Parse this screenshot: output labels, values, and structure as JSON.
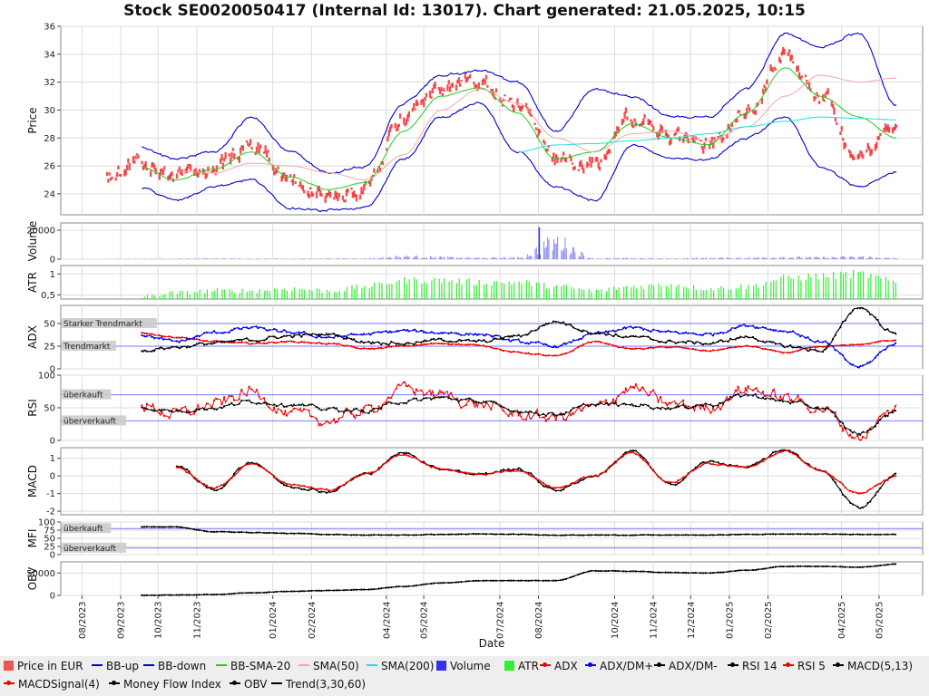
{
  "title": "Stock SE0020050417 (Internal Id: 13017). Chart generated: 21.05.2025, 10:15",
  "colors": {
    "price": "#ee3333",
    "bb_up": "#0000cc",
    "bb_down": "#0000cc",
    "bb_sma": "#22cc22",
    "sma50": "#f0a8a8",
    "sma200": "#22dddd",
    "volume": "#3333ee",
    "atr": "#33ee33",
    "adx": "#ee0000",
    "dmplus": "#0000ee",
    "dmminus": "#000000",
    "rsi14": "#000000",
    "rsi5": "#ee0000",
    "macd": "#000000",
    "macdsignal": "#ee0000",
    "mfi": "#000000",
    "obv": "#000000",
    "trend": "#000000",
    "band_line": "#7777ff",
    "band_label_bg": "#cccccc"
  },
  "xaxis": {
    "label": "Date",
    "tick_labels": [
      "08/2023",
      "09/2023",
      "10/2023",
      "11/2023",
      "01/2024",
      "02/2024",
      "04/2024",
      "05/2024",
      "07/2024",
      "08/2024",
      "10/2024",
      "11/2024",
      "12/2024",
      "01/2025",
      "02/2025",
      "04/2025",
      "05/2025"
    ]
  },
  "panels": {
    "price": {
      "ylabel": "Price",
      "yticks": [
        "24",
        "26",
        "28",
        "30",
        "32",
        "34",
        "36"
      ]
    },
    "volume": {
      "ylabel": "Volume",
      "yticks": [
        "0",
        "20000"
      ]
    },
    "atr": {
      "ylabel": "ATR",
      "yticks": [
        "0,5",
        "1"
      ]
    },
    "adx": {
      "ylabel": "ADX",
      "yticks": [
        "0",
        "25",
        "50"
      ],
      "bands": [
        "Starker Trendmarkt",
        "Trendmarkt"
      ]
    },
    "rsi": {
      "ylabel": "RSI",
      "yticks": [
        "0",
        "50",
        "100"
      ],
      "bands": [
        "überkauft",
        "überverkauft"
      ]
    },
    "macd": {
      "ylabel": "MACD",
      "yticks": [
        "-2",
        "-1",
        "0",
        "1"
      ]
    },
    "mfi": {
      "ylabel": "MFI",
      "yticks": [
        "0",
        "25",
        "50",
        "75",
        "100"
      ],
      "bands": [
        "überkauft",
        "überverkauft"
      ]
    },
    "obv": {
      "ylabel": "OBV",
      "yticks": [
        "0",
        "50000"
      ]
    }
  },
  "legend": [
    {
      "label": "Price in EUR",
      "kind": "box",
      "color": "#ee5555"
    },
    {
      "label": "BB-up",
      "kind": "line",
      "color": "#0000cc"
    },
    {
      "label": "BB-down",
      "kind": "line",
      "color": "#0000cc"
    },
    {
      "label": "BB-SMA-20",
      "kind": "line",
      "color": "#22cc22"
    },
    {
      "label": "SMA(50)",
      "kind": "line",
      "color": "#f0a8a8"
    },
    {
      "label": "SMA(200)",
      "kind": "line",
      "color": "#22dddd"
    },
    {
      "label": "Volume",
      "kind": "box",
      "color": "#3333ee"
    },
    {
      "label": "ATR",
      "kind": "box",
      "color": "#33ee33"
    },
    {
      "label": "ADX",
      "kind": "dot",
      "color": "#ee0000"
    },
    {
      "label": "ADX/DM+",
      "kind": "dot",
      "color": "#0000ee"
    },
    {
      "label": "ADX/DM-",
      "kind": "dot",
      "color": "#000000"
    },
    {
      "label": "RSI 14",
      "kind": "dot",
      "color": "#000000"
    },
    {
      "label": "RSI 5",
      "kind": "dot",
      "color": "#ee0000"
    },
    {
      "label": "MACD(5,13)",
      "kind": "dot",
      "color": "#000000"
    },
    {
      "label": "MACDSignal(4)",
      "kind": "dot",
      "color": "#ee0000"
    },
    {
      "label": "Money Flow Index",
      "kind": "dot",
      "color": "#000000"
    },
    {
      "label": "OBV",
      "kind": "dot",
      "color": "#000000"
    },
    {
      "label": "Trend(3,30,60)",
      "kind": "line",
      "color": "#000000"
    }
  ],
  "chart_data": {
    "type": "line",
    "title": "Stock SE0020050417 (Internal Id: 13017). Chart generated: 21.05.2025, 10:15",
    "xlabel": "Date",
    "x": [
      "2023-08-21",
      "2023-09-15",
      "2023-10-15",
      "2023-11-15",
      "2023-12-15",
      "2024-01-15",
      "2024-02-15",
      "2024-03-15",
      "2024-04-15",
      "2024-05-15",
      "2024-06-15",
      "2024-07-15",
      "2024-08-15",
      "2024-09-15",
      "2024-10-15",
      "2024-11-15",
      "2024-12-15",
      "2025-01-15",
      "2025-02-15",
      "2025-03-15",
      "2025-04-15",
      "2025-05-15"
    ],
    "series": [
      {
        "name": "Price in EUR",
        "panel": "price",
        "ylim": [
          22.5,
          36
        ],
        "values": [
          25.0,
          26.5,
          25.0,
          25.8,
          27.5,
          25.0,
          23.8,
          24.5,
          29.5,
          31.5,
          32.0,
          30.5,
          26.5,
          26.0,
          29.5,
          28.0,
          27.5,
          30.0,
          34.0,
          31.0,
          26.5,
          28.5
        ]
      },
      {
        "name": "BB-up",
        "panel": "price",
        "values": [
          null,
          27.4,
          26.5,
          27.0,
          29.5,
          27.0,
          25.5,
          26.0,
          30.5,
          32.5,
          32.8,
          32.0,
          28.5,
          31.5,
          31.0,
          29.5,
          29.5,
          31.5,
          35.5,
          34.5,
          35.5,
          30.3
        ]
      },
      {
        "name": "BB-down",
        "panel": "price",
        "values": [
          null,
          24.5,
          23.5,
          24.5,
          25.0,
          23.0,
          22.8,
          23.0,
          26.5,
          29.5,
          30.5,
          27.0,
          24.5,
          23.5,
          27.5,
          26.5,
          26.5,
          28.0,
          29.5,
          26.0,
          24.5,
          25.6
        ]
      },
      {
        "name": "BB-SMA-20",
        "panel": "price",
        "values": [
          null,
          26.0,
          25.0,
          25.8,
          27.0,
          25.2,
          24.3,
          24.8,
          28.5,
          31.0,
          31.6,
          29.8,
          26.5,
          27.0,
          29.0,
          28.0,
          27.5,
          29.8,
          33.0,
          31.0,
          29.5,
          28.0
        ]
      },
      {
        "name": "SMA(50)",
        "panel": "price",
        "values": [
          null,
          null,
          25.6,
          25.5,
          26.2,
          26.0,
          25.5,
          25.0,
          26.8,
          30.0,
          31.5,
          30.5,
          28.0,
          27.0,
          28.3,
          28.5,
          27.8,
          28.8,
          31.0,
          32.5,
          32.0,
          32.3
        ]
      },
      {
        "name": "SMA(200)",
        "panel": "price",
        "values": [
          null,
          null,
          null,
          null,
          null,
          null,
          null,
          null,
          null,
          null,
          null,
          27.0,
          27.5,
          27.6,
          27.8,
          28.0,
          28.3,
          28.8,
          29.2,
          29.5,
          29.4,
          29.3
        ]
      },
      {
        "name": "Volume",
        "panel": "volume",
        "ylim": [
          0,
          25000
        ],
        "values": [
          200,
          300,
          500,
          700,
          600,
          500,
          800,
          900,
          3500,
          2500,
          1500,
          2000,
          22000,
          900,
          1200,
          800,
          1500,
          1800,
          2500,
          2200,
          3000,
          1000
        ]
      },
      {
        "name": "ATR",
        "panel": "atr",
        "ylim": [
          0.4,
          1.2
        ],
        "values": [
          null,
          0.45,
          0.55,
          0.6,
          0.6,
          0.65,
          0.6,
          0.7,
          0.85,
          0.85,
          0.8,
          0.8,
          0.7,
          0.6,
          0.7,
          0.75,
          0.65,
          0.7,
          0.9,
          0.95,
          1.0,
          0.8
        ]
      },
      {
        "name": "ADX",
        "panel": "adx",
        "ylim": [
          0,
          70
        ],
        "values": [
          null,
          40,
          35,
          30,
          28,
          30,
          28,
          22,
          25,
          28,
          26,
          18,
          14,
          30,
          22,
          24,
          20,
          25,
          18,
          24,
          27,
          32
        ]
      },
      {
        "name": "ADX/DM+",
        "panel": "adx",
        "values": [
          null,
          38,
          30,
          40,
          45,
          40,
          35,
          38,
          42,
          40,
          38,
          30,
          25,
          38,
          45,
          40,
          38,
          48,
          42,
          30,
          2,
          28
        ]
      },
      {
        "name": "ADX/DM-",
        "panel": "adx",
        "values": [
          null,
          20,
          24,
          28,
          32,
          36,
          38,
          30,
          28,
          32,
          30,
          36,
          52,
          40,
          35,
          30,
          28,
          35,
          25,
          20,
          68,
          38
        ]
      },
      {
        "name": "RSI 14",
        "panel": "rsi",
        "ylim": [
          0,
          100
        ],
        "values": [
          null,
          50,
          45,
          50,
          60,
          55,
          48,
          45,
          60,
          65,
          60,
          45,
          40,
          55,
          55,
          50,
          55,
          70,
          60,
          50,
          10,
          45
        ]
      },
      {
        "name": "RSI 5",
        "panel": "rsi",
        "values": [
          null,
          55,
          40,
          55,
          75,
          40,
          30,
          45,
          80,
          70,
          55,
          40,
          35,
          50,
          80,
          55,
          50,
          80,
          65,
          50,
          5,
          50
        ]
      },
      {
        "name": "MACD(5,13)",
        "panel": "macd",
        "ylim": [
          -2.2,
          1.6
        ],
        "values": [
          null,
          null,
          0.6,
          -0.8,
          0.8,
          -0.6,
          -0.9,
          0.1,
          1.3,
          0.4,
          0.1,
          0.4,
          -0.8,
          0.0,
          1.4,
          -0.5,
          0.8,
          0.5,
          1.5,
          0.3,
          -1.8,
          0.1
        ]
      },
      {
        "name": "MACDSignal(4)",
        "panel": "macd",
        "values": [
          null,
          null,
          0.5,
          -0.7,
          0.7,
          -0.5,
          -0.8,
          0.1,
          1.2,
          0.4,
          0.1,
          0.3,
          -0.7,
          0.0,
          1.3,
          -0.4,
          0.7,
          0.5,
          1.4,
          0.3,
          -1.0,
          0.0
        ]
      },
      {
        "name": "Money Flow Index",
        "panel": "mfi",
        "ylim": [
          0,
          100
        ],
        "values": [
          null,
          85,
          85,
          70,
          68,
          65,
          62,
          60,
          60,
          62,
          63,
          62,
          60,
          60,
          60,
          60,
          60,
          62,
          63,
          63,
          62,
          62
        ]
      },
      {
        "name": "OBV",
        "panel": "obv",
        "ylim": [
          0,
          75000
        ],
        "values": [
          null,
          0,
          1000,
          2000,
          6000,
          9000,
          11000,
          13000,
          20000,
          28000,
          33000,
          33000,
          33000,
          55000,
          54000,
          51000,
          50000,
          56000,
          65000,
          65000,
          63000,
          70000
        ]
      }
    ]
  }
}
